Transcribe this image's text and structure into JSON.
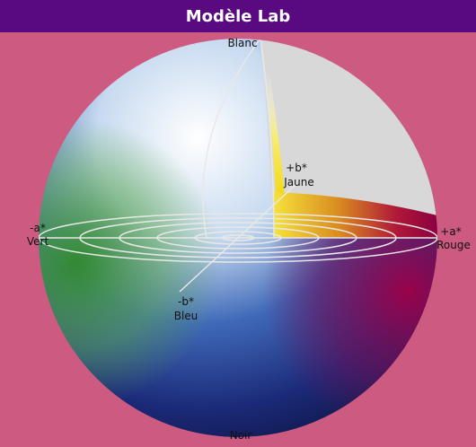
{
  "header": {
    "title": "Modèle Lab"
  },
  "labels": {
    "top": "Blanc",
    "bottom": "Noir",
    "left": {
      "axis": "-a*",
      "name": "Vert"
    },
    "right": {
      "axis": "+a*",
      "name": "Rouge"
    },
    "back": {
      "axis": "+b*",
      "name": "Jaune"
    },
    "front": {
      "axis": "-b*",
      "name": "Bleu"
    }
  }
}
